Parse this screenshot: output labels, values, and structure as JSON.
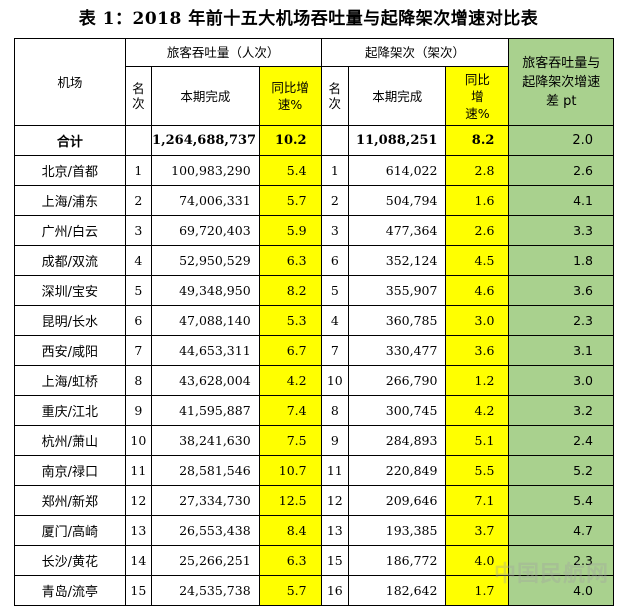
{
  "title": "表 1：2018 年前十五大机场吞吐量与起降架次增速对比表",
  "header": {
    "airport": "机场",
    "passenger_group": "旅客吞吐量（人次）",
    "flight_group": "起降架次（架次）",
    "diff": "旅客吞吐量与起降架次增速差 pt",
    "rank": "名次",
    "current": "本期完成",
    "yoy": "同比增速%",
    "yoy2": "同比增速%"
  },
  "total": {
    "label": "合计",
    "passengers": "1,264,688,737",
    "p_growth": "10.2",
    "flights": "11,088,251",
    "f_growth": "8.2",
    "diff": "2.0"
  },
  "rows": [
    {
      "airport": "北京/首都",
      "p_rank": "1",
      "passengers": "100,983,290",
      "p_growth": "5.4",
      "f_rank": "1",
      "flights": "614,022",
      "f_growth": "2.8",
      "diff": "2.6"
    },
    {
      "airport": "上海/浦东",
      "p_rank": "2",
      "passengers": "74,006,331",
      "p_growth": "5.7",
      "f_rank": "2",
      "flights": "504,794",
      "f_growth": "1.6",
      "diff": "4.1"
    },
    {
      "airport": "广州/白云",
      "p_rank": "3",
      "passengers": "69,720,403",
      "p_growth": "5.9",
      "f_rank": "3",
      "flights": "477,364",
      "f_growth": "2.6",
      "diff": "3.3"
    },
    {
      "airport": "成都/双流",
      "p_rank": "4",
      "passengers": "52,950,529",
      "p_growth": "6.3",
      "f_rank": "6",
      "flights": "352,124",
      "f_growth": "4.5",
      "diff": "1.8"
    },
    {
      "airport": "深圳/宝安",
      "p_rank": "5",
      "passengers": "49,348,950",
      "p_growth": "8.2",
      "f_rank": "5",
      "flights": "355,907",
      "f_growth": "4.6",
      "diff": "3.6"
    },
    {
      "airport": "昆明/长水",
      "p_rank": "6",
      "passengers": "47,088,140",
      "p_growth": "5.3",
      "f_rank": "4",
      "flights": "360,785",
      "f_growth": "3.0",
      "diff": "2.3"
    },
    {
      "airport": "西安/咸阳",
      "p_rank": "7",
      "passengers": "44,653,311",
      "p_growth": "6.7",
      "f_rank": "7",
      "flights": "330,477",
      "f_growth": "3.6",
      "diff": "3.1"
    },
    {
      "airport": "上海/虹桥",
      "p_rank": "8",
      "passengers": "43,628,004",
      "p_growth": "4.2",
      "f_rank": "10",
      "flights": "266,790",
      "f_growth": "1.2",
      "diff": "3.0"
    },
    {
      "airport": "重庆/江北",
      "p_rank": "9",
      "passengers": "41,595,887",
      "p_growth": "7.4",
      "f_rank": "8",
      "flights": "300,745",
      "f_growth": "4.2",
      "diff": "3.2"
    },
    {
      "airport": "杭州/萧山",
      "p_rank": "10",
      "passengers": "38,241,630",
      "p_growth": "7.5",
      "f_rank": "9",
      "flights": "284,893",
      "f_growth": "5.1",
      "diff": "2.4"
    },
    {
      "airport": "南京/禄口",
      "p_rank": "11",
      "passengers": "28,581,546",
      "p_growth": "10.7",
      "f_rank": "11",
      "flights": "220,849",
      "f_growth": "5.5",
      "diff": "5.2"
    },
    {
      "airport": "郑州/新郑",
      "p_rank": "12",
      "passengers": "27,334,730",
      "p_growth": "12.5",
      "f_rank": "12",
      "flights": "209,646",
      "f_growth": "7.1",
      "diff": "5.4"
    },
    {
      "airport": "厦门/高崎",
      "p_rank": "13",
      "passengers": "26,553,438",
      "p_growth": "8.4",
      "f_rank": "13",
      "flights": "193,385",
      "f_growth": "3.7",
      "diff": "4.7"
    },
    {
      "airport": "长沙/黄花",
      "p_rank": "14",
      "passengers": "25,266,251",
      "p_growth": "6.3",
      "f_rank": "15",
      "flights": "186,772",
      "f_growth": "4.0",
      "diff": "2.3"
    },
    {
      "airport": "青岛/流亭",
      "p_rank": "15",
      "passengers": "24,535,738",
      "p_growth": "5.7",
      "f_rank": "16",
      "flights": "182,642",
      "f_growth": "1.7",
      "diff": "4.0"
    }
  ],
  "colors": {
    "highlight_yellow": "#ffff00",
    "highlight_green": "#a9d18e"
  },
  "cell_mark_icon": "return-arrow-icon"
}
